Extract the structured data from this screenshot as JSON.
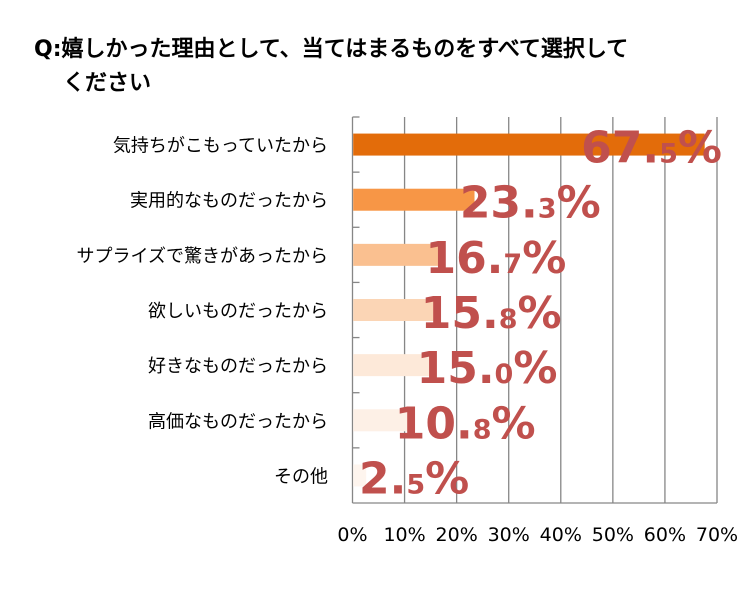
{
  "chart_data": {
    "type": "bar",
    "orientation": "horizontal",
    "title_line1": "Q:嬉しかった理由として、当てはまるものをすべて選択して",
    "title_line2": "ください",
    "categories": [
      "気持ちがこもっていたから",
      "実用的なものだったから",
      "サプライズで驚きがあったから",
      "欲しいものだったから",
      "好きなものだったから",
      "高価なものだったから",
      "その他"
    ],
    "values": [
      67.5,
      23.3,
      16.7,
      15.8,
      15.0,
      10.8,
      2.5
    ],
    "data_labels": [
      {
        "int": "67.",
        "dec": "5",
        "pct": "%"
      },
      {
        "int": "23.",
        "dec": "3",
        "pct": "%"
      },
      {
        "int": "16.",
        "dec": "7",
        "pct": "%"
      },
      {
        "int": "15.",
        "dec": "8",
        "pct": "%"
      },
      {
        "int": "15.",
        "dec": "0",
        "pct": "%"
      },
      {
        "int": "10.",
        "dec": "8",
        "pct": "%"
      },
      {
        "int": "2.",
        "dec": "5",
        "pct": "%"
      }
    ],
    "bar_colors": [
      "#E36C0A",
      "#F79646",
      "#FAC090",
      "#FBD5B5",
      "#FDE9D9",
      "#FDF0E6",
      "#FEF5EE"
    ],
    "label_color": "#C0504D",
    "xlim": [
      0,
      70
    ],
    "xticks": [
      "0%",
      "10%",
      "20%",
      "30%",
      "40%",
      "50%",
      "60%",
      "70%"
    ],
    "grid": true,
    "xlabel": "",
    "ylabel": ""
  }
}
